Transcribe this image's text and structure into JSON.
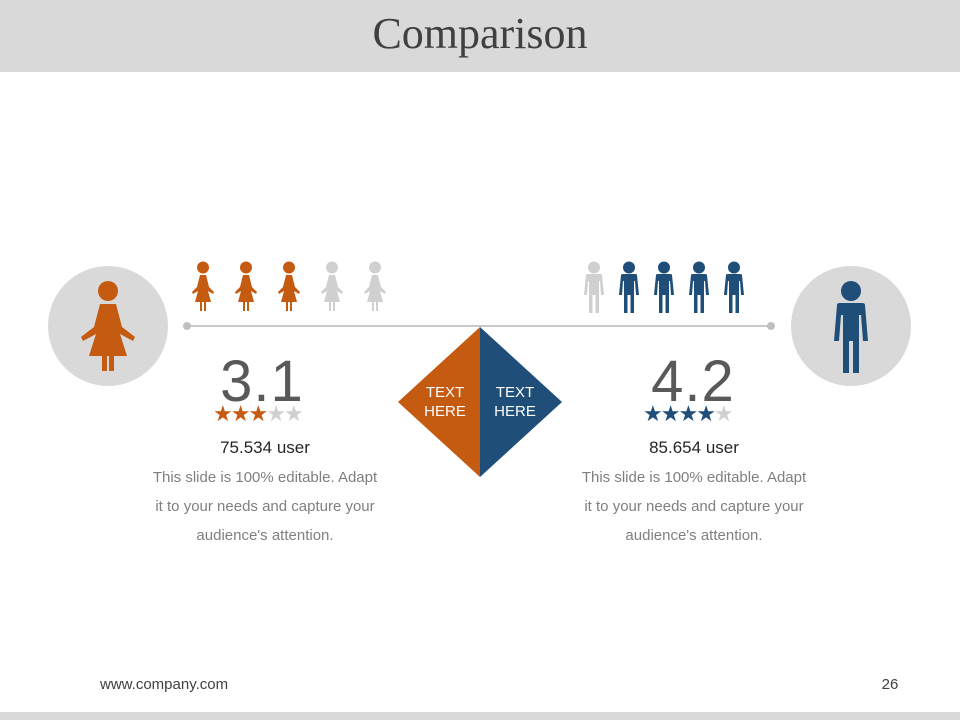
{
  "slide": {
    "title": "Comparison",
    "footer_url": "www.company.com",
    "page_number": "26"
  },
  "colors": {
    "orange": "#c55a11",
    "navy": "#1f4e79",
    "gray": "#d0d0d0"
  },
  "center": {
    "left_text": [
      "TEXT",
      "HERE"
    ],
    "right_text": [
      "TEXT",
      "HERE"
    ]
  },
  "left": {
    "figure": "female-figure-icon",
    "crowd_total": 5,
    "crowd_filled": 3,
    "value": "3.1",
    "rating": 3,
    "rating_max": 5,
    "users": "75.534 user",
    "description": [
      "This slide is 100% editable. Adapt",
      "it to your needs and capture your",
      "audience's attention."
    ]
  },
  "right": {
    "figure": "male-figure-icon",
    "crowd_total": 5,
    "crowd_filled": 4,
    "value": "4.2",
    "rating": 4,
    "rating_max": 5,
    "users": "85.654 user",
    "description": [
      "This slide is 100% editable. Adapt",
      "it to your needs and capture your",
      "audience's attention."
    ]
  }
}
